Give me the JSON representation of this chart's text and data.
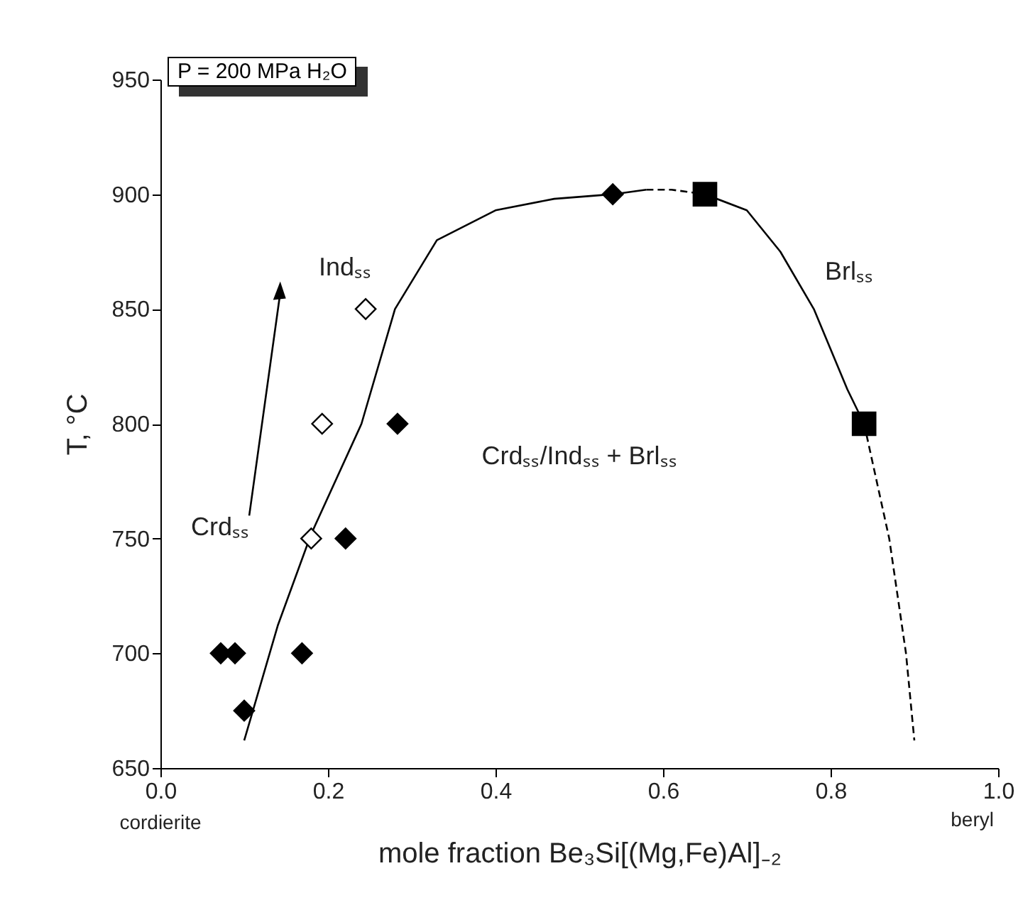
{
  "chart_data": {
    "type": "scatter",
    "xlabel": "mole fraction  Be₃Si[(Mg,Fe)Al]₋₂",
    "ylabel": "T, °C",
    "xlim": [
      0,
      1
    ],
    "xticks": [
      {
        "value": 0,
        "label": "0.0"
      },
      {
        "value": 0.2,
        "label": "0.2"
      },
      {
        "value": 0.4,
        "label": "0.4"
      },
      {
        "value": 0.6,
        "label": "0.6"
      },
      {
        "value": 0.8,
        "label": "0.8"
      },
      {
        "value": 1,
        "label": "1.0"
      }
    ],
    "ylim": [
      650,
      950
    ],
    "yticks": [
      650,
      700,
      750,
      800,
      850,
      900,
      950
    ],
    "grid": false,
    "series": [
      {
        "type": "line",
        "line_style": "solid",
        "color": "#000000",
        "x": [
          0.1,
          0.14,
          0.18,
          0.24,
          0.28,
          0.33,
          0.4,
          0.47,
          0.54,
          0.58
        ],
        "values": [
          662,
          712,
          752,
          800,
          850,
          880,
          893,
          898,
          900,
          902
        ]
      },
      {
        "type": "line",
        "line_style": "dashed",
        "color": "#000000",
        "x": [
          0.58,
          0.61,
          0.65
        ],
        "values": [
          902,
          902,
          900
        ]
      },
      {
        "type": "line",
        "line_style": "solid",
        "color": "#000000",
        "x": [
          0.65,
          0.7,
          0.74,
          0.78,
          0.82,
          0.84
        ],
        "values": [
          900,
          893,
          875,
          850,
          815,
          800
        ]
      },
      {
        "type": "line",
        "line_style": "dashed",
        "color": "#000000",
        "x": [
          0.84,
          0.87,
          0.89,
          0.9
        ],
        "values": [
          800,
          750,
          700,
          662
        ]
      },
      {
        "marker": "diamond",
        "color": "#000000",
        "x": [
          0.072,
          0.089,
          0.1,
          0.169,
          0.221,
          0.283,
          0.54
        ],
        "values": [
          700,
          700,
          675,
          700,
          750,
          800,
          900
        ]
      },
      {
        "marker": "diamond",
        "color": "#ffffff",
        "x": [
          0.18,
          0.193,
          0.245
        ],
        "values": [
          750,
          800,
          850
        ]
      },
      {
        "marker": "square",
        "color": "#000000",
        "x": [
          0.65,
          0.84
        ],
        "values": [
          900,
          800
        ]
      }
    ],
    "annotations": [
      "P = 200 MPa H₂O",
      "Indₛₛ",
      "Crdₛₛ",
      "Brlₛₛ",
      "Crdₛₛ/Indₛₛ + Brlₛₛ",
      "cordierite",
      "beryl"
    ]
  }
}
